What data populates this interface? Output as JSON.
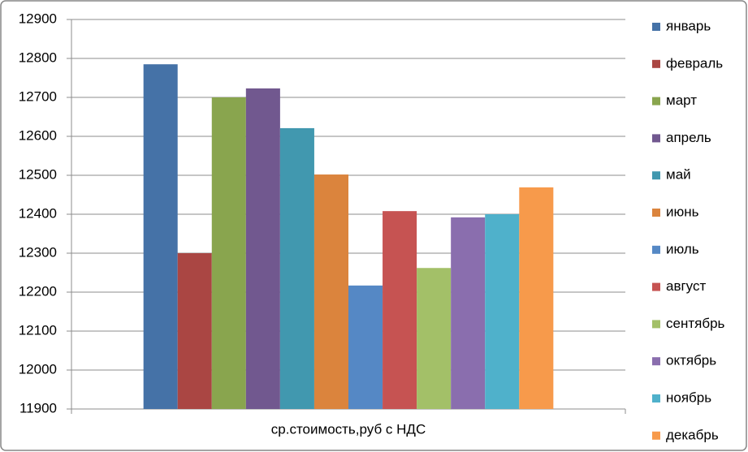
{
  "chart_data": {
    "type": "bar",
    "categories": [
      "ср.стоимость,руб с НДС"
    ],
    "series": [
      {
        "name": "январь",
        "color": "#4572A7",
        "values": [
          12785
        ]
      },
      {
        "name": "февраль",
        "color": "#AA4643",
        "values": [
          12300
        ]
      },
      {
        "name": "март",
        "color": "#89A54E",
        "values": [
          12700
        ]
      },
      {
        "name": "апрель",
        "color": "#71588F",
        "values": [
          12723
        ]
      },
      {
        "name": "май",
        "color": "#4198AF",
        "values": [
          12621
        ]
      },
      {
        "name": "июнь",
        "color": "#DB843D",
        "values": [
          12502
        ]
      },
      {
        "name": "июль",
        "color": "#5588C5",
        "values": [
          12217
        ]
      },
      {
        "name": "август",
        "color": "#C65352",
        "values": [
          12408
        ]
      },
      {
        "name": "сентябрь",
        "color": "#A3C068",
        "values": [
          12262
        ]
      },
      {
        "name": "октябрь",
        "color": "#8A6EAE",
        "values": [
          12392
        ]
      },
      {
        "name": "ноябрь",
        "color": "#4FB1CB",
        "values": [
          12400
        ]
      },
      {
        "name": "декабрь",
        "color": "#F79A4B",
        "values": [
          12469
        ]
      }
    ],
    "ylim": [
      11900,
      12900
    ],
    "yticks": [
      11900,
      12000,
      12100,
      12200,
      12300,
      12400,
      12500,
      12600,
      12700,
      12800,
      12900
    ],
    "grid": true,
    "legend": "right"
  }
}
